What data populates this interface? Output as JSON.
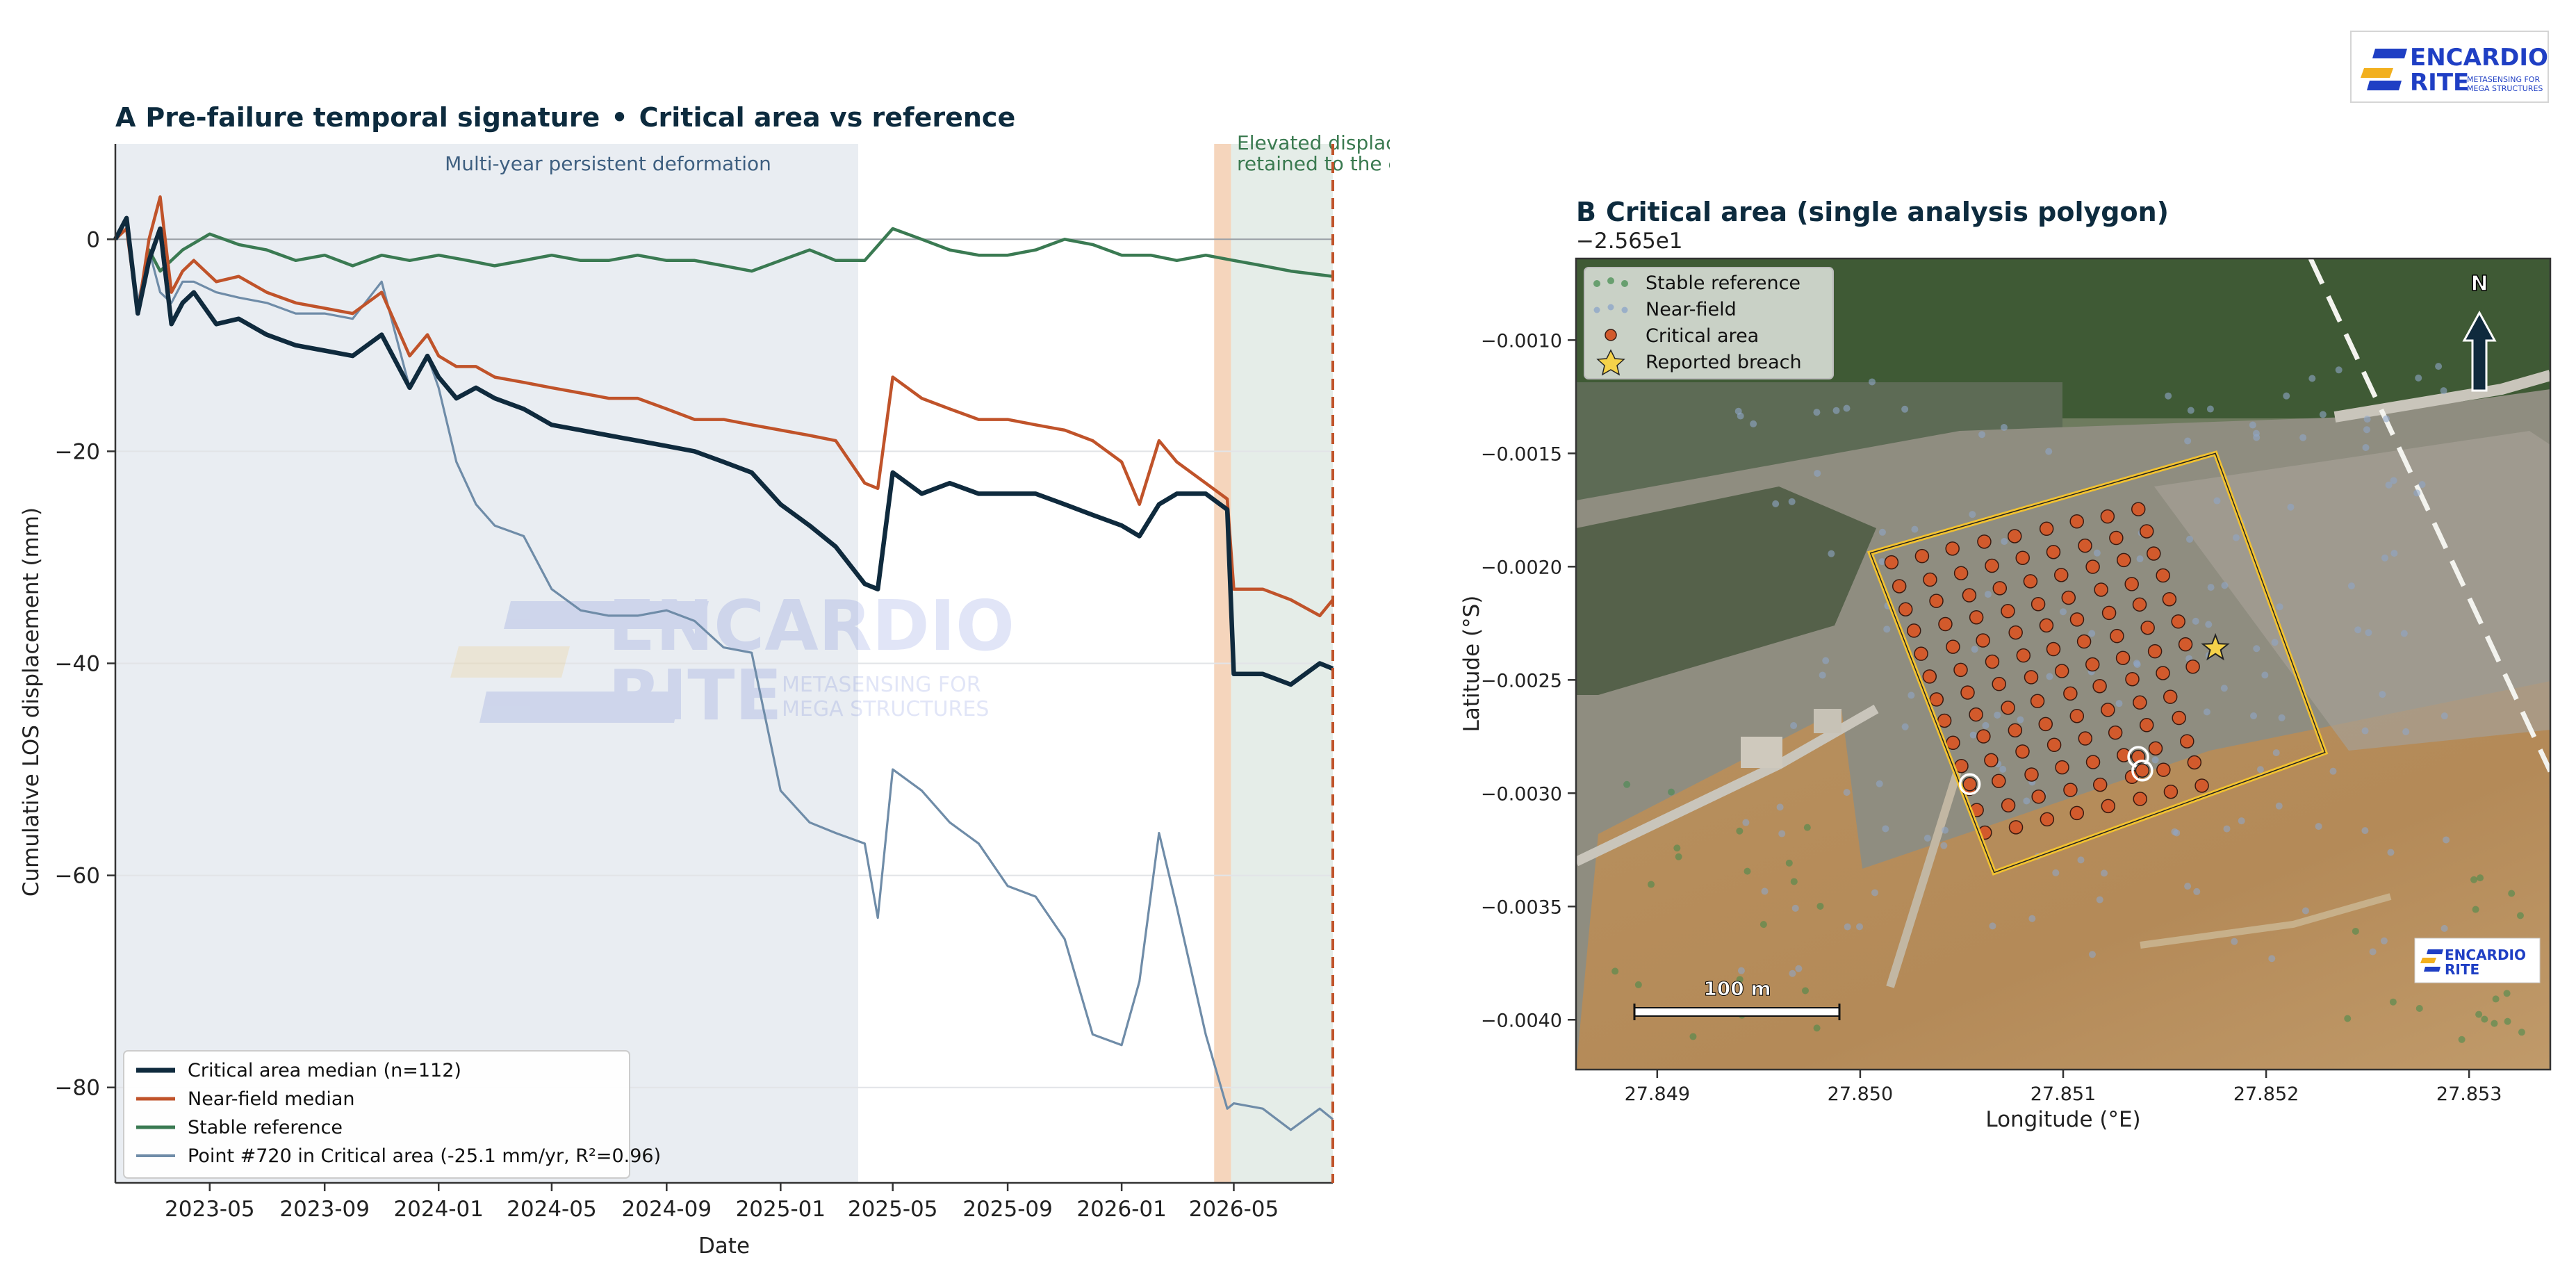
{
  "brand": {
    "logo_top": "ENCARDIO",
    "logo_bottom": "RITE",
    "logo_tagline": "METASENSING FOR MEGA STRUCTURES",
    "colors": {
      "blue": "#1f3fc4",
      "yellow": "#f2b01e"
    }
  },
  "panel_a": {
    "title_prefix": "A",
    "title": "Pre-failure temporal signature",
    "title_sep": "•",
    "title_suffix": "Critical area vs reference",
    "annotation_left": "Multi-year persistent deformation",
    "annotation_right_line1": "Elevated displacement",
    "annotation_right_line2": "retained to the event",
    "legend": [
      "Critical area median (n=112)",
      "Near-field median",
      "Stable reference",
      "Point #720 in Critical area  (-25.1 mm/yr, R²=0.96)"
    ]
  },
  "panel_b": {
    "title_prefix": "B",
    "title": "Critical area  (single analysis polygon)",
    "offset_label": "−2.565e1",
    "north": "N",
    "scalebar": "100 m",
    "legend": [
      "Stable reference",
      "Near-field",
      "Critical area",
      "Reported breach"
    ],
    "xlabel": "Longitude (°E)",
    "ylabel": "Latitude (°S)",
    "xticks": [
      "27.849",
      "27.850",
      "27.851",
      "27.852",
      "27.853"
    ],
    "yticks": [
      "−0.0010",
      "−0.0015",
      "−0.0020",
      "−0.0025",
      "−0.0030",
      "−0.0035",
      "−0.0040"
    ]
  },
  "chart_data": [
    {
      "type": "line",
      "title": "Pre-failure temporal signature • Critical area vs reference",
      "xlabel": "Date",
      "ylabel": "Cumulative LOS displacement (mm)",
      "xlim": [
        "2023-01-20",
        "2026-08-15"
      ],
      "ylim": [
        -89,
        9
      ],
      "xticks": [
        "2023-05",
        "2023-09",
        "2024-01",
        "2024-05",
        "2024-09",
        "2025-01",
        "2025-05",
        "2025-09",
        "2026-01",
        "2026-05"
      ],
      "yticks": [
        0,
        -20,
        -40,
        -60,
        -80
      ],
      "grid": "horizontal",
      "legend_position": "bottom-left",
      "shaded_spans": [
        {
          "from": "2023-01-20",
          "to": "2025-03-25",
          "color": "#e3e8ef"
        },
        {
          "from": "2026-04-10",
          "to": "2026-04-28",
          "color": "#f2c7a6"
        },
        {
          "from": "2026-04-28",
          "to": "2026-08-15",
          "color": "#dfe8e2"
        }
      ],
      "event_line": "2026-08-15",
      "series": [
        {
          "name": "Critical area median (n=112)",
          "color": "#0f2a3d",
          "x": [
            "2023-01-20",
            "2023-02-01",
            "2023-02-13",
            "2023-02-25",
            "2023-03-09",
            "2023-03-21",
            "2023-04-02",
            "2023-04-14",
            "2023-05-08",
            "2023-06-01",
            "2023-07-01",
            "2023-08-01",
            "2023-09-01",
            "2023-10-01",
            "2023-11-01",
            "2023-12-01",
            "2023-12-20",
            "2024-01-01",
            "2024-01-20",
            "2024-02-10",
            "2024-03-01",
            "2024-04-01",
            "2024-05-01",
            "2024-06-01",
            "2024-07-01",
            "2024-08-01",
            "2024-09-01",
            "2024-10-01",
            "2024-11-01",
            "2024-12-01",
            "2025-01-01",
            "2025-02-01",
            "2025-03-01",
            "2025-04-01",
            "2025-04-15",
            "2025-05-01",
            "2025-06-01",
            "2025-07-01",
            "2025-08-01",
            "2025-09-01",
            "2025-10-01",
            "2025-11-01",
            "2025-12-01",
            "2026-01-01",
            "2026-01-20",
            "2026-02-10",
            "2026-03-01",
            "2026-04-01",
            "2026-04-24",
            "2026-05-01",
            "2026-06-01",
            "2026-07-01",
            "2026-08-01",
            "2026-08-15"
          ],
          "values": [
            0,
            2,
            -7,
            -2,
            1,
            -8,
            -6,
            -5,
            -8,
            -7.5,
            -9,
            -10,
            -10.5,
            -11,
            -9,
            -14,
            -11,
            -13,
            -15,
            -14,
            -15,
            -16,
            -17.5,
            -18,
            -18.5,
            -19,
            -19.5,
            -20,
            -21,
            -22,
            -25,
            -27,
            -29,
            -32.5,
            -33,
            -22,
            -24,
            -23,
            -24,
            -24,
            -24,
            -25,
            -26,
            -27,
            -28,
            -25,
            -24,
            -24,
            -25.5,
            -41,
            -41,
            -42,
            -40,
            -40.5
          ]
        },
        {
          "name": "Near-field median",
          "color": "#c0532a",
          "x": [
            "2023-01-20",
            "2023-02-01",
            "2023-02-13",
            "2023-02-25",
            "2023-03-09",
            "2023-03-21",
            "2023-04-02",
            "2023-04-14",
            "2023-05-08",
            "2023-06-01",
            "2023-07-01",
            "2023-08-01",
            "2023-09-01",
            "2023-10-01",
            "2023-11-01",
            "2023-12-01",
            "2023-12-20",
            "2024-01-01",
            "2024-01-20",
            "2024-02-10",
            "2024-03-01",
            "2024-04-01",
            "2024-05-01",
            "2024-06-01",
            "2024-07-01",
            "2024-08-01",
            "2024-09-01",
            "2024-10-01",
            "2024-11-01",
            "2024-12-01",
            "2025-01-01",
            "2025-02-01",
            "2025-03-01",
            "2025-04-01",
            "2025-04-15",
            "2025-05-01",
            "2025-06-01",
            "2025-07-01",
            "2025-08-01",
            "2025-09-01",
            "2025-10-01",
            "2025-11-01",
            "2025-12-01",
            "2026-01-01",
            "2026-01-20",
            "2026-02-10",
            "2026-03-01",
            "2026-04-01",
            "2026-04-24",
            "2026-05-01",
            "2026-06-01",
            "2026-07-01",
            "2026-08-01",
            "2026-08-15"
          ],
          "values": [
            0,
            1,
            -7,
            0,
            4,
            -5,
            -3,
            -2,
            -4,
            -3.5,
            -5,
            -6,
            -6.5,
            -7,
            -5,
            -11,
            -9,
            -11,
            -12,
            -12,
            -13,
            -13.5,
            -14,
            -14.5,
            -15,
            -15,
            -16,
            -17,
            -17,
            -17.5,
            -18,
            -18.5,
            -19,
            -23,
            -23.5,
            -13,
            -15,
            -16,
            -17,
            -17,
            -17.5,
            -18,
            -19,
            -21,
            -25,
            -19,
            -21,
            -23,
            -24.5,
            -33,
            -33,
            -34,
            -35.5,
            -34
          ]
        },
        {
          "name": "Stable reference",
          "color": "#3a7a52",
          "x": [
            "2023-01-20",
            "2023-02-01",
            "2023-02-13",
            "2023-02-25",
            "2023-03-09",
            "2023-03-21",
            "2023-04-02",
            "2023-05-01",
            "2023-06-01",
            "2023-07-01",
            "2023-08-01",
            "2023-09-01",
            "2023-10-01",
            "2023-11-01",
            "2023-12-01",
            "2024-01-01",
            "2024-02-01",
            "2024-03-01",
            "2024-04-01",
            "2024-05-01",
            "2024-06-01",
            "2024-07-01",
            "2024-08-01",
            "2024-09-01",
            "2024-10-01",
            "2024-11-01",
            "2024-12-01",
            "2025-01-01",
            "2025-02-01",
            "2025-03-01",
            "2025-04-01",
            "2025-05-01",
            "2025-06-01",
            "2025-07-01",
            "2025-08-01",
            "2025-09-01",
            "2025-10-01",
            "2025-11-01",
            "2025-12-01",
            "2026-01-01",
            "2026-02-01",
            "2026-03-01",
            "2026-04-01",
            "2026-05-01",
            "2026-06-01",
            "2026-07-01",
            "2026-08-15"
          ],
          "values": [
            0,
            2,
            -7,
            -1,
            -3,
            -2,
            -1,
            0.5,
            -0.5,
            -1,
            -2,
            -1.5,
            -2.5,
            -1.5,
            -2,
            -1.5,
            -2,
            -2.5,
            -2,
            -1.5,
            -2,
            -2,
            -1.5,
            -2,
            -2,
            -2.5,
            -3,
            -2,
            -1,
            -2,
            -2,
            1,
            0,
            -1,
            -1.5,
            -1.5,
            -1,
            0,
            -0.5,
            -1.5,
            -1.5,
            -2,
            -1.5,
            -2,
            -2.5,
            -3,
            -3.5
          ]
        },
        {
          "name": "Point #720 in Critical area  (-25.1 mm/yr, R²=0.96)",
          "color": "#6f8ca8",
          "x": [
            "2023-01-20",
            "2023-02-01",
            "2023-02-13",
            "2023-02-25",
            "2023-03-09",
            "2023-03-21",
            "2023-04-02",
            "2023-04-14",
            "2023-05-08",
            "2023-06-01",
            "2023-07-01",
            "2023-08-01",
            "2023-09-01",
            "2023-10-01",
            "2023-11-01",
            "2023-12-01",
            "2023-12-20",
            "2024-01-01",
            "2024-01-20",
            "2024-02-10",
            "2024-03-01",
            "2024-04-01",
            "2024-05-01",
            "2024-06-01",
            "2024-07-01",
            "2024-08-01",
            "2024-09-01",
            "2024-10-01",
            "2024-11-01",
            "2024-12-01",
            "2025-01-01",
            "2025-02-01",
            "2025-03-01",
            "2025-04-01",
            "2025-04-15",
            "2025-05-01",
            "2025-06-01",
            "2025-07-01",
            "2025-08-01",
            "2025-09-01",
            "2025-10-01",
            "2025-11-01",
            "2025-12-01",
            "2026-01-01",
            "2026-01-20",
            "2026-02-10",
            "2026-03-01",
            "2026-04-01",
            "2026-04-24",
            "2026-05-01",
            "2026-06-01",
            "2026-07-01",
            "2026-08-01",
            "2026-08-15"
          ],
          "values": [
            0,
            1,
            -6,
            -1,
            -5,
            -6,
            -4,
            -4,
            -5,
            -5.5,
            -6,
            -7,
            -7,
            -7.5,
            -4,
            -14,
            -11,
            -14,
            -21,
            -25,
            -27,
            -28,
            -33,
            -35,
            -35.5,
            -35.5,
            -35,
            -36,
            -38.5,
            -39,
            -52,
            -55,
            -56,
            -57,
            -64,
            -50,
            -52,
            -55,
            -57,
            -61,
            -62,
            -66,
            -75,
            -76,
            -70,
            -56,
            -63,
            -75,
            -82,
            -81.5,
            -82,
            -84,
            -82,
            -83
          ]
        }
      ]
    },
    {
      "type": "scatter",
      "title": "Critical area  (single analysis polygon)",
      "xlabel": "Longitude (°E)",
      "ylabel": "Latitude (°S)",
      "y_offset": "−2.565e1",
      "xlim": [
        27.8486,
        27.8534
      ],
      "ylim": [
        -0.00422,
        -0.00064
      ],
      "legend_position": "top-left",
      "polygon": [
        [
          27.85005,
          -0.00194
        ],
        [
          27.85175,
          -0.0015
        ],
        [
          27.85229,
          -0.00282
        ],
        [
          27.85066,
          -0.00335
        ]
      ],
      "breach": {
        "x": 27.85175,
        "y": -0.00236
      },
      "highlighted_points": [
        [
          27.85054,
          -0.00296
        ],
        [
          27.85137,
          -0.00284
        ],
        [
          27.85139,
          -0.0029
        ]
      ],
      "series": [
        {
          "name": "Stable reference",
          "color": "#3f8a4a",
          "count": 40
        },
        {
          "name": "Near-field",
          "color": "#8fa6c8",
          "count": 150
        },
        {
          "name": "Critical area",
          "color": "#d25a2c",
          "count": 112
        }
      ]
    }
  ]
}
